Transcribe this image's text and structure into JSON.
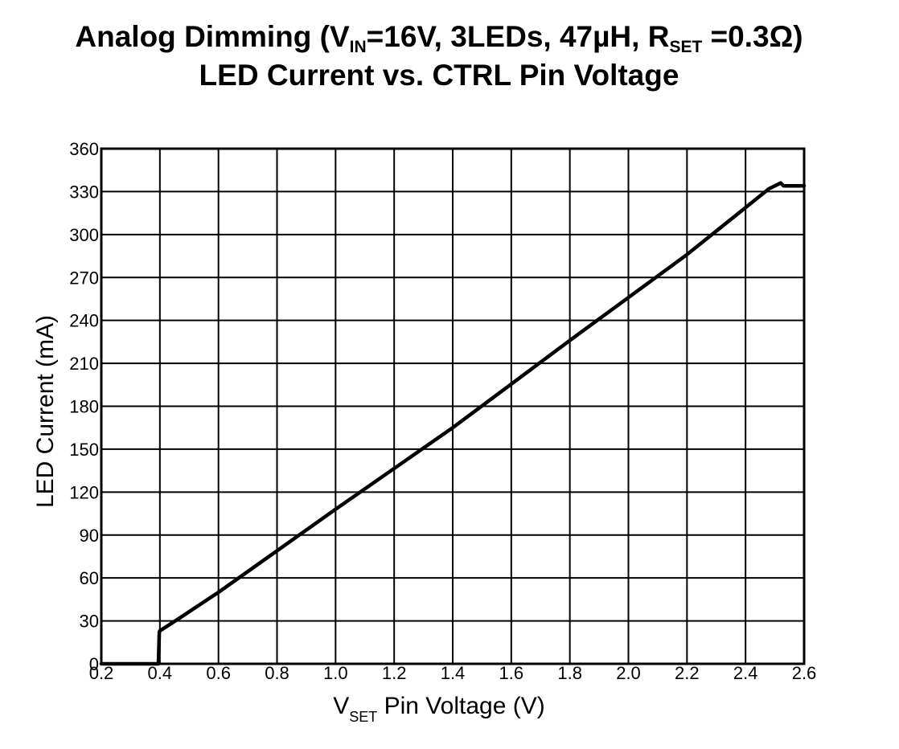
{
  "chart_data": {
    "type": "line",
    "title": {
      "line1_parts": [
        {
          "text": "Analog Dimming (V",
          "sub": false
        },
        {
          "text": "IN",
          "sub": true
        },
        {
          "text": "=16V, 3LEDs, 47µH, R",
          "sub": false
        },
        {
          "text": "SET",
          "sub": true
        },
        {
          "text": " =0.3Ω)",
          "sub": false
        }
      ],
      "line2": "LED Current vs. CTRL Pin Voltage"
    },
    "xlabel_parts": [
      {
        "text": "V",
        "sub": false
      },
      {
        "text": "SET",
        "sub": true
      },
      {
        "text": " Pin Voltage (V)",
        "sub": false
      }
    ],
    "ylabel": "LED Current (mA)",
    "xlim": [
      0.2,
      2.6
    ],
    "ylim": [
      0,
      360
    ],
    "x_ticks": [
      0.2,
      0.4,
      0.6,
      0.8,
      1.0,
      1.2,
      1.4,
      1.6,
      1.8,
      2.0,
      2.2,
      2.4,
      2.6
    ],
    "x_tick_labels": [
      "0.2",
      "0.4",
      "0.6",
      "0.8",
      "1.0",
      "1.2",
      "1.4",
      "1.6",
      "1.8",
      "2.0",
      "2.2",
      "2.4",
      "2.6"
    ],
    "y_ticks": [
      0,
      30,
      60,
      90,
      120,
      150,
      180,
      210,
      240,
      270,
      300,
      330,
      360
    ],
    "y_tick_labels": [
      "0",
      "30",
      "60",
      "90",
      "120",
      "150",
      "180",
      "210",
      "240",
      "270",
      "300",
      "330",
      "360"
    ],
    "grid": true,
    "legend": "none",
    "series": [
      {
        "color": "#000000",
        "x": [
          0.2,
          0.395,
          0.398,
          0.4,
          0.46,
          0.6,
          1.0,
          1.4,
          1.8,
          2.2,
          2.48,
          2.52,
          2.53,
          2.6
        ],
        "y": [
          0,
          0,
          22,
          23,
          31,
          50,
          108,
          165,
          226,
          286,
          332,
          336,
          334,
          334
        ]
      }
    ]
  }
}
